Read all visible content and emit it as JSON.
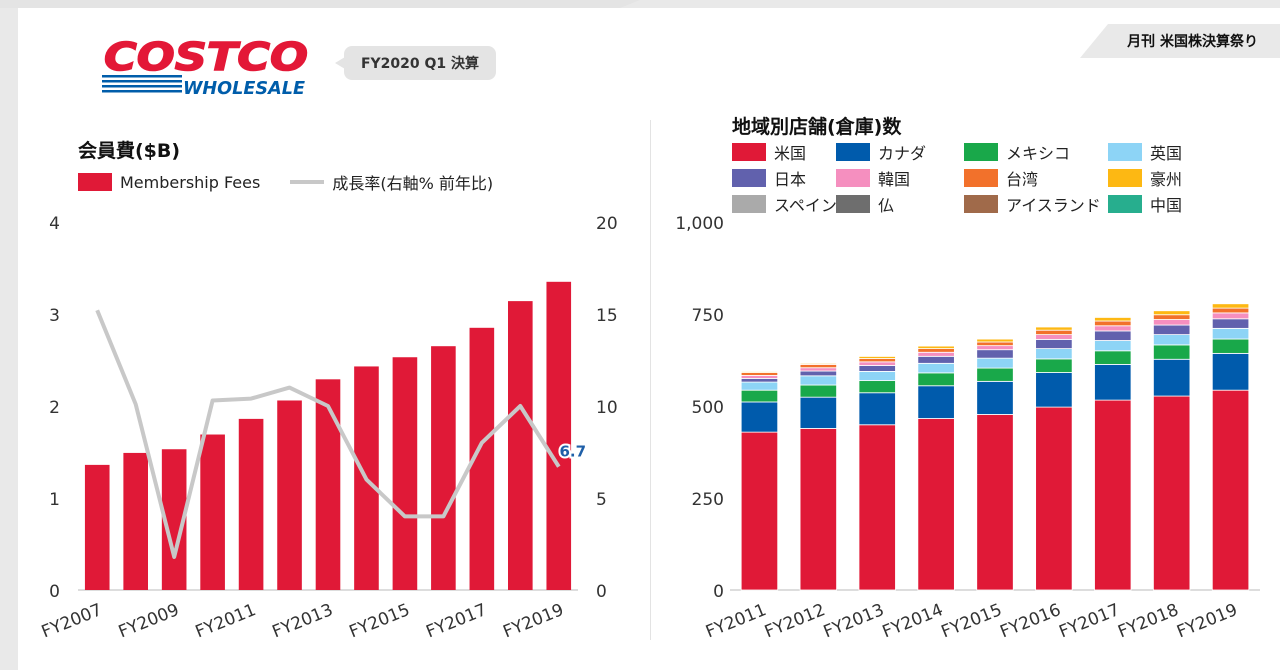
{
  "header": {
    "logo_top": "COSTCO",
    "logo_bottom": "WHOLESALE",
    "quarter_tag": "FY2020 Q1 決算",
    "publication": "月刊 米国株決算祭り"
  },
  "colors": {
    "membership_bar": "#e01937",
    "growth_line": "#c8c8c8",
    "logo_red": "#e31837",
    "logo_blue": "#005daa"
  },
  "chart_data": [
    {
      "type": "bar",
      "title": "会員費($B)",
      "categories": [
        "FY2007",
        "FY2008",
        "FY2009",
        "FY2010",
        "FY2011",
        "FY2012",
        "FY2013",
        "FY2014",
        "FY2015",
        "FY2016",
        "FY2017",
        "FY2018",
        "FY2019"
      ],
      "x_tick_labels": [
        "FY2007",
        "",
        "FY2009",
        "",
        "FY2011",
        "",
        "FY2013",
        "",
        "FY2015",
        "",
        "FY2017",
        "",
        "FY2019"
      ],
      "series": [
        {
          "name": "Membership Fees",
          "axis": "left",
          "type": "bar",
          "values": [
            1.36,
            1.49,
            1.53,
            1.69,
            1.86,
            2.06,
            2.29,
            2.43,
            2.53,
            2.65,
            2.85,
            3.14,
            3.35
          ]
        },
        {
          "name": "成長率(右軸% 前年比)",
          "axis": "right",
          "type": "line",
          "values": [
            15.2,
            10.1,
            1.8,
            10.3,
            10.4,
            11.0,
            10.0,
            6.0,
            4.0,
            4.0,
            8.0,
            10.0,
            6.7
          ]
        }
      ],
      "ylim_left": [
        0,
        4
      ],
      "yticks_left": [
        "0",
        "1",
        "2",
        "3",
        "4"
      ],
      "ylim_right": [
        0,
        20
      ],
      "yticks_right": [
        "0",
        "5",
        "10",
        "15",
        "20"
      ],
      "annotation": "6.7",
      "legend_position": "top-left",
      "grid": false
    },
    {
      "type": "bar",
      "stacked": true,
      "title": "地域別店舗(倉庫)数",
      "categories": [
        "FY2011",
        "FY2012",
        "FY2013",
        "FY2014",
        "FY2015",
        "FY2016",
        "FY2017",
        "FY2018",
        "FY2019"
      ],
      "ylim": [
        0,
        1000
      ],
      "yticks": [
        "0",
        "250",
        "500",
        "750",
        "1,000"
      ],
      "legend_position": "top",
      "grid": false,
      "series": [
        {
          "name": "米国",
          "color": "#e01937",
          "values": [
            429,
            439,
            449,
            466,
            477,
            497,
            516,
            527,
            543
          ]
        },
        {
          "name": "カナダ",
          "color": "#005bac",
          "values": [
            82,
            85,
            87,
            89,
            90,
            94,
            97,
            100,
            100
          ]
        },
        {
          "name": "メキシコ",
          "color": "#19a84a",
          "values": [
            32,
            33,
            33,
            35,
            36,
            37,
            37,
            39,
            39
          ]
        },
        {
          "name": "英国",
          "color": "#8dd4f6",
          "values": [
            22,
            25,
            25,
            26,
            27,
            28,
            28,
            28,
            29
          ]
        },
        {
          "name": "日本",
          "color": "#6161ad",
          "values": [
            10,
            13,
            16,
            19,
            23,
            25,
            26,
            26,
            26
          ]
        },
        {
          "name": "韓国",
          "color": "#f58fbf",
          "values": [
            8,
            9,
            10,
            11,
            11,
            13,
            14,
            15,
            16
          ]
        },
        {
          "name": "台湾",
          "color": "#f2712b",
          "values": [
            8,
            9,
            9,
            10,
            10,
            12,
            13,
            13,
            13
          ]
        },
        {
          "name": "豪州",
          "color": "#fdb813",
          "values": [
            3,
            3,
            6,
            7,
            8,
            9,
            10,
            11,
            12
          ]
        },
        {
          "name": "スペイン",
          "color": "#aaaaaa",
          "values": [
            1,
            1,
            1,
            2,
            2,
            2,
            2,
            2,
            2
          ]
        },
        {
          "name": "仏",
          "color": "#6e6e6e",
          "values": [
            0,
            0,
            0,
            0,
            0,
            0,
            1,
            1,
            1
          ]
        },
        {
          "name": "アイスランド",
          "color": "#a06a4a",
          "values": [
            0,
            0,
            0,
            0,
            0,
            0,
            1,
            1,
            1
          ]
        },
        {
          "name": "中国",
          "color": "#27ae8e",
          "values": [
            0,
            0,
            0,
            0,
            0,
            0,
            0,
            0,
            1
          ]
        }
      ]
    }
  ]
}
